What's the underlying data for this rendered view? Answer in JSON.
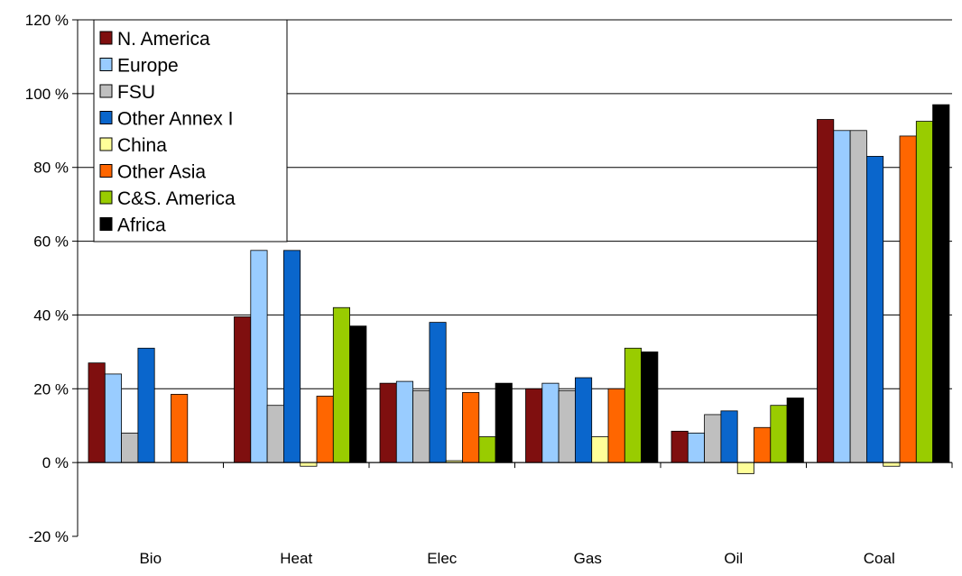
{
  "chart_data": {
    "type": "bar",
    "title": "",
    "xlabel": "",
    "ylabel": "",
    "ylim": [
      -20,
      120
    ],
    "y_tick_step": 20,
    "y_tick_suffix": " %",
    "grid": "horizontal",
    "legend_placement": "top-left",
    "categories": [
      "Bio",
      "Heat",
      "Elec",
      "Gas",
      "Oil",
      "Coal"
    ],
    "series": [
      {
        "name": "N. America",
        "color": "#7f0f0f",
        "values": [
          27,
          39.5,
          21.5,
          20,
          8.5,
          93
        ]
      },
      {
        "name": "Europe",
        "color": "#99ccff",
        "values": [
          24,
          57.5,
          22,
          21.5,
          8,
          90
        ]
      },
      {
        "name": "FSU",
        "color": "#bfbfbf",
        "values": [
          8,
          15.5,
          19.5,
          19.5,
          13,
          90
        ]
      },
      {
        "name": "Other Annex I",
        "color": "#0a66cc",
        "values": [
          31,
          57.5,
          38,
          23,
          14,
          83
        ]
      },
      {
        "name": "China",
        "color": "#ffff99",
        "values": [
          0,
          -1,
          0.5,
          7,
          -3,
          -1
        ]
      },
      {
        "name": "Other Asia",
        "color": "#ff6600",
        "values": [
          18.5,
          18,
          19,
          20,
          9.5,
          88.5
        ]
      },
      {
        "name": "C&S. America",
        "color": "#99cc00",
        "values": [
          0,
          42,
          7,
          31,
          15.5,
          92.5
        ]
      },
      {
        "name": "Africa",
        "color": "#000000",
        "values": [
          0,
          37,
          21.5,
          30,
          17.5,
          97
        ]
      }
    ]
  }
}
